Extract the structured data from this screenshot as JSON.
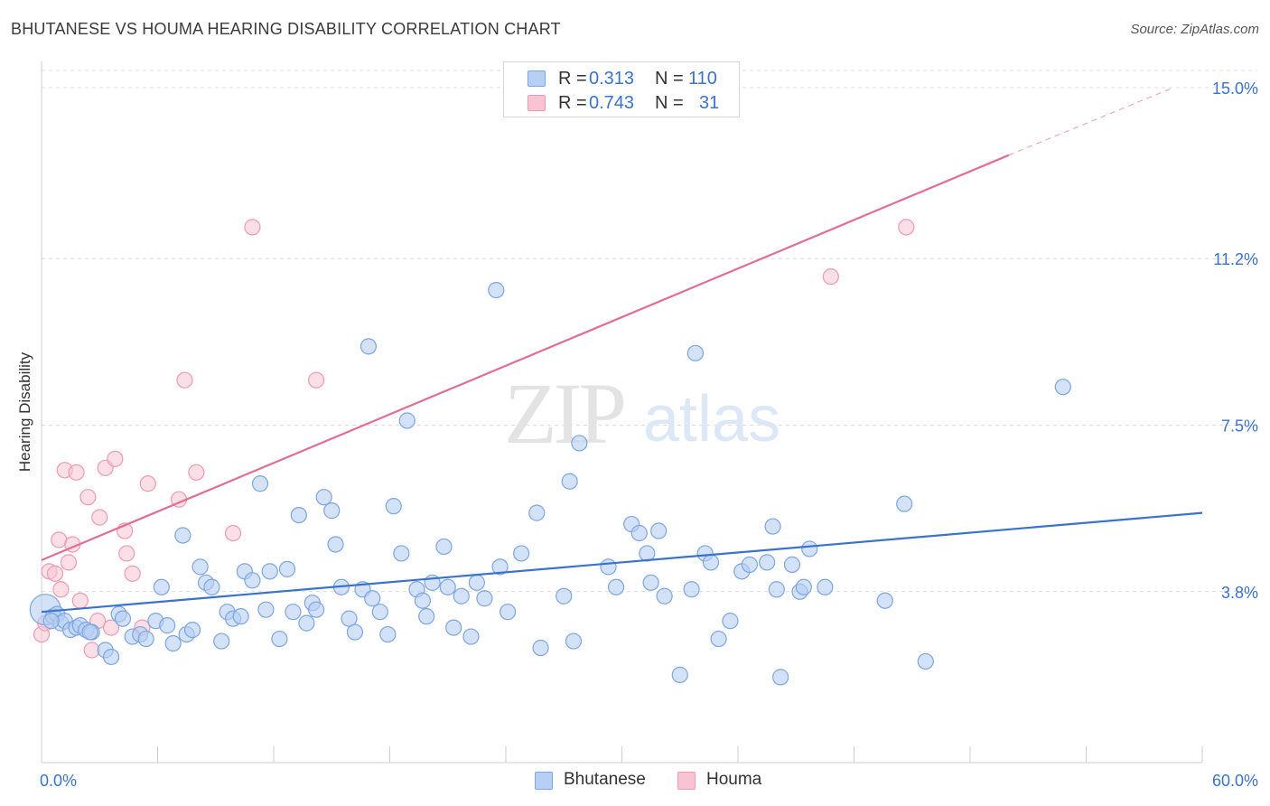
{
  "title": "BHUTANESE VS HOUMA HEARING DISABILITY CORRELATION CHART",
  "source": "Source: ZipAtlas.com",
  "watermark": {
    "zip": "ZIP",
    "atlas": "atlas"
  },
  "colors": {
    "blue": "#3a73c9",
    "pink": "#e06f94",
    "blue_fill": "#b6cff2",
    "pink_fill": "#f8c4d3"
  },
  "legend_top": {
    "rows": [
      {
        "r_label": "R =",
        "r_value": "0.313",
        "n_label": "N =",
        "n_value": "110"
      },
      {
        "r_label": "R =",
        "r_value": "0.743",
        "n_label": "N =",
        "n_value": "31"
      }
    ]
  },
  "legend_bottom": [
    "Bhutanese",
    "Houma"
  ],
  "chart_data": {
    "type": "scatter",
    "title": "BHUTANESE VS HOUMA HEARING DISABILITY CORRELATION CHART",
    "xlabel": "",
    "ylabel": "Hearing Disability",
    "xlim": [
      0,
      60
    ],
    "ylim": [
      0,
      15.5
    ],
    "x_tick_labels": [
      "0.0%",
      "60.0%"
    ],
    "y_ticks": [
      {
        "value": 3.8,
        "label": "3.8%"
      },
      {
        "value": 7.5,
        "label": "7.5%"
      },
      {
        "value": 11.2,
        "label": "11.2%"
      },
      {
        "value": 15.0,
        "label": "15.0%"
      }
    ],
    "grid": "horizontal dashed",
    "legend_position": "top-center",
    "series": [
      {
        "name": "Bhutanese",
        "R": 0.313,
        "N": 110,
        "trend": {
          "x": [
            0,
            60
          ],
          "y": [
            3.35,
            5.55
          ]
        },
        "points": [
          [
            0.2,
            3.4
          ],
          [
            0.6,
            3.25
          ],
          [
            0.8,
            3.3
          ],
          [
            1.0,
            3.1
          ],
          [
            1.2,
            3.15
          ],
          [
            1.5,
            2.95
          ],
          [
            1.8,
            3.0
          ],
          [
            2.0,
            3.05
          ],
          [
            2.3,
            2.95
          ],
          [
            2.6,
            2.9
          ],
          [
            3.3,
            2.5
          ],
          [
            3.6,
            2.35
          ],
          [
            4.0,
            3.3
          ],
          [
            4.2,
            3.2
          ],
          [
            4.7,
            2.8
          ],
          [
            5.1,
            2.85
          ],
          [
            5.4,
            2.75
          ],
          [
            5.9,
            3.15
          ],
          [
            6.2,
            3.9
          ],
          [
            6.5,
            3.05
          ],
          [
            6.8,
            2.65
          ],
          [
            7.3,
            5.05
          ],
          [
            7.5,
            2.85
          ],
          [
            7.8,
            2.95
          ],
          [
            8.2,
            4.35
          ],
          [
            8.5,
            4.0
          ],
          [
            8.8,
            3.9
          ],
          [
            9.3,
            2.7
          ],
          [
            9.6,
            3.35
          ],
          [
            9.9,
            3.2
          ],
          [
            10.3,
            3.25
          ],
          [
            10.5,
            4.25
          ],
          [
            10.9,
            4.05
          ],
          [
            11.3,
            6.2
          ],
          [
            11.6,
            3.4
          ],
          [
            11.8,
            4.25
          ],
          [
            12.3,
            2.75
          ],
          [
            12.7,
            4.3
          ],
          [
            13.0,
            3.35
          ],
          [
            13.3,
            5.5
          ],
          [
            13.7,
            3.1
          ],
          [
            14.0,
            3.55
          ],
          [
            14.2,
            3.4
          ],
          [
            14.6,
            5.9
          ],
          [
            15.0,
            5.6
          ],
          [
            15.2,
            4.85
          ],
          [
            15.5,
            3.9
          ],
          [
            15.9,
            3.2
          ],
          [
            16.2,
            2.9
          ],
          [
            16.6,
            3.85
          ],
          [
            16.9,
            9.25
          ],
          [
            17.1,
            3.65
          ],
          [
            17.5,
            3.35
          ],
          [
            17.9,
            2.85
          ],
          [
            18.2,
            5.7
          ],
          [
            18.6,
            4.65
          ],
          [
            18.9,
            7.6
          ],
          [
            19.4,
            3.85
          ],
          [
            19.7,
            3.6
          ],
          [
            19.9,
            3.25
          ],
          [
            20.2,
            4.0
          ],
          [
            20.8,
            4.8
          ],
          [
            21.0,
            3.9
          ],
          [
            21.3,
            3.0
          ],
          [
            21.7,
            3.7
          ],
          [
            22.2,
            2.8
          ],
          [
            22.5,
            4.0
          ],
          [
            22.9,
            3.65
          ],
          [
            23.5,
            10.5
          ],
          [
            23.7,
            4.35
          ],
          [
            24.1,
            3.35
          ],
          [
            24.8,
            4.65
          ],
          [
            25.6,
            5.55
          ],
          [
            25.8,
            2.55
          ],
          [
            27.0,
            3.7
          ],
          [
            27.3,
            6.25
          ],
          [
            27.5,
            2.7
          ],
          [
            27.8,
            7.1
          ],
          [
            29.3,
            4.35
          ],
          [
            29.7,
            3.9
          ],
          [
            30.5,
            5.3
          ],
          [
            30.9,
            5.1
          ],
          [
            31.3,
            4.65
          ],
          [
            31.5,
            4.0
          ],
          [
            31.9,
            5.15
          ],
          [
            32.2,
            3.7
          ],
          [
            33.0,
            1.95
          ],
          [
            33.6,
            3.85
          ],
          [
            33.8,
            9.1
          ],
          [
            34.3,
            4.65
          ],
          [
            34.6,
            4.45
          ],
          [
            35.0,
            2.75
          ],
          [
            35.6,
            3.15
          ],
          [
            36.2,
            4.25
          ],
          [
            36.6,
            4.4
          ],
          [
            37.5,
            4.45
          ],
          [
            37.8,
            5.25
          ],
          [
            38.0,
            3.85
          ],
          [
            38.2,
            1.9
          ],
          [
            38.8,
            4.4
          ],
          [
            39.2,
            3.8
          ],
          [
            39.4,
            3.9
          ],
          [
            39.7,
            4.75
          ],
          [
            40.5,
            3.9
          ],
          [
            43.6,
            3.6
          ],
          [
            44.6,
            5.75
          ],
          [
            45.7,
            2.25
          ],
          [
            52.8,
            8.35
          ],
          [
            0.5,
            3.15
          ],
          [
            2.5,
            2.9
          ]
        ]
      },
      {
        "name": "Houma",
        "R": 0.743,
        "N": 31,
        "trend": {
          "x": [
            0,
            50
          ],
          "y": [
            4.5,
            13.5
          ]
        },
        "trend_dashed": {
          "x": [
            50,
            58.5
          ],
          "y": [
            13.5,
            15.0
          ]
        },
        "points": [
          [
            0.0,
            2.85
          ],
          [
            0.2,
            3.1
          ],
          [
            0.4,
            4.25
          ],
          [
            0.7,
            4.2
          ],
          [
            0.9,
            4.95
          ],
          [
            1.0,
            3.85
          ],
          [
            1.2,
            6.5
          ],
          [
            1.4,
            4.45
          ],
          [
            1.6,
            4.85
          ],
          [
            1.8,
            6.45
          ],
          [
            2.0,
            3.6
          ],
          [
            2.4,
            5.9
          ],
          [
            2.6,
            2.5
          ],
          [
            2.9,
            3.15
          ],
          [
            3.0,
            5.45
          ],
          [
            3.3,
            6.55
          ],
          [
            3.6,
            3.0
          ],
          [
            3.8,
            6.75
          ],
          [
            4.3,
            5.15
          ],
          [
            4.4,
            4.65
          ],
          [
            4.7,
            4.2
          ],
          [
            5.2,
            3.0
          ],
          [
            5.5,
            6.2
          ],
          [
            7.1,
            5.85
          ],
          [
            7.4,
            8.5
          ],
          [
            8.0,
            6.45
          ],
          [
            9.9,
            5.1
          ],
          [
            10.9,
            11.9
          ],
          [
            14.2,
            8.5
          ],
          [
            40.8,
            10.8
          ],
          [
            44.7,
            11.9
          ]
        ]
      }
    ]
  }
}
